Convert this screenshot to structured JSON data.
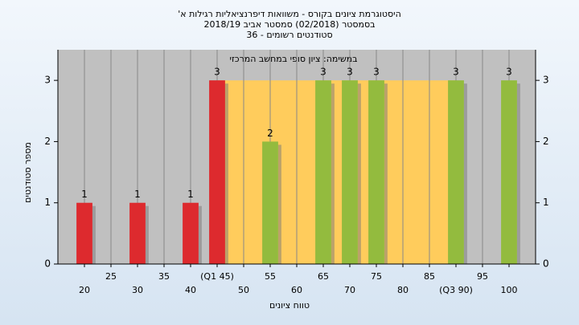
{
  "chart_data": {
    "type": "histogram",
    "title": [
      "היסטוגרמת ציונים בקורס - משוואות דיפרנציאליות רגילות א'",
      "בסמסטר (02/2018) סמסטר אביב 2018/19",
      "סטודנטים רשומים - 36"
    ],
    "subtitle": "במשימה: ציון סופי במחשב המרכזי",
    "x_label": "טווח ציונים",
    "y_label": "מספר סטודנטים",
    "x": [
      20,
      30,
      40,
      45,
      55,
      65,
      70,
      75,
      90,
      100
    ],
    "values": [
      1,
      1,
      1,
      3,
      2,
      3,
      3,
      3,
      3,
      3
    ],
    "colors": [
      "#dd2a2e",
      "#dd2a2e",
      "#dd2a2e",
      "#dd2a2e",
      "#93bb3e",
      "#93bb3e",
      "#93bb3e",
      "#93bb3e",
      "#93bb3e",
      "#93bb3e"
    ],
    "bar_width": 3,
    "quartile_band": {
      "x": [
        45,
        90
      ],
      "top": 3,
      "color": "#ffcc5c"
    },
    "xlim": [
      15,
      105
    ],
    "ylim": [
      0,
      3.5
    ],
    "xticks": [
      20,
      25,
      30,
      35,
      40,
      {
        "value": 45,
        "label": "(Q1 45)"
      },
      50,
      55,
      60,
      65,
      70,
      75,
      80,
      85,
      {
        "value": 90,
        "label": "(Q3 90)"
      },
      95,
      100
    ],
    "yticks": [
      0,
      1,
      2,
      3
    ],
    "grid": "x"
  }
}
